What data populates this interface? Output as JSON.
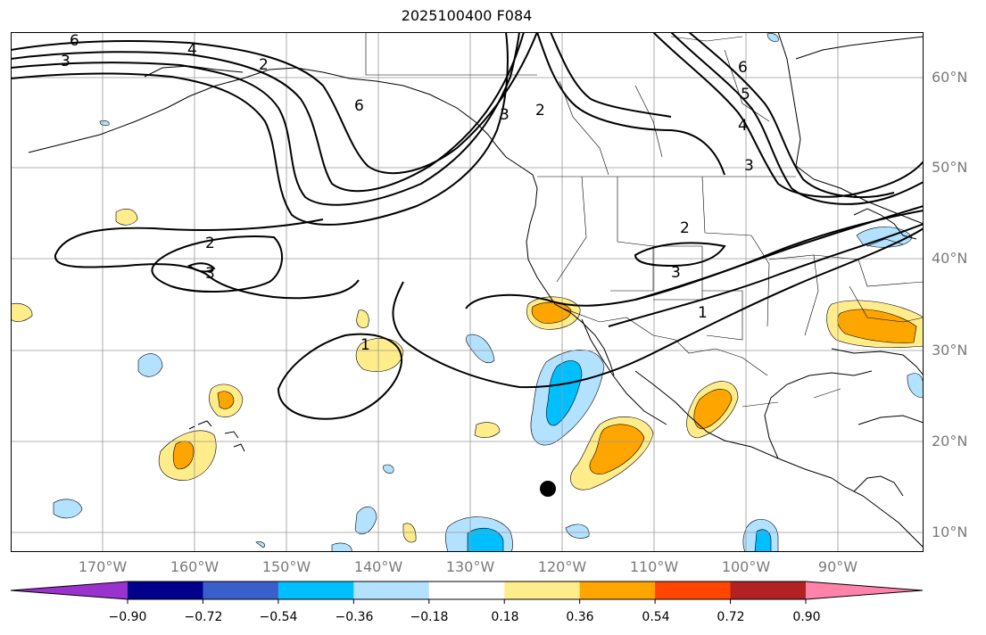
{
  "title": "2025100400 F084",
  "lat_labels": [
    "60°N",
    "50°N",
    "40°N",
    "30°N",
    "20°N",
    "10°N"
  ],
  "lon_labels": [
    "170°W",
    "160°W",
    "150°W",
    "140°W",
    "130°W",
    "120°W",
    "110°W",
    "100°W",
    "90°W"
  ],
  "colorbar": {
    "tick_labels": [
      "−0.90",
      "−0.72",
      "−0.54",
      "−0.36",
      "−0.18",
      "0.18",
      "0.36",
      "0.54",
      "0.72",
      "0.90"
    ],
    "colors": [
      "#9a32cd",
      "#00008b",
      "#3a5fcd",
      "#00bfff",
      "#b2e2ff",
      "#ffffff",
      "#ffec8b",
      "#ffa500",
      "#ff4500",
      "#b22222",
      "#ff82ab"
    ]
  },
  "contour_labels": [
    "6",
    "4",
    "3",
    "2",
    "6",
    "2",
    "3",
    "6",
    "5",
    "4",
    "3",
    "2",
    "3",
    "2",
    "3",
    "1",
    "1"
  ],
  "colors": {
    "neg_light": "#b2e2ff",
    "neg_dark": "#00bfff",
    "pos_light": "#ffec8b",
    "pos_dark": "#ffa500"
  }
}
